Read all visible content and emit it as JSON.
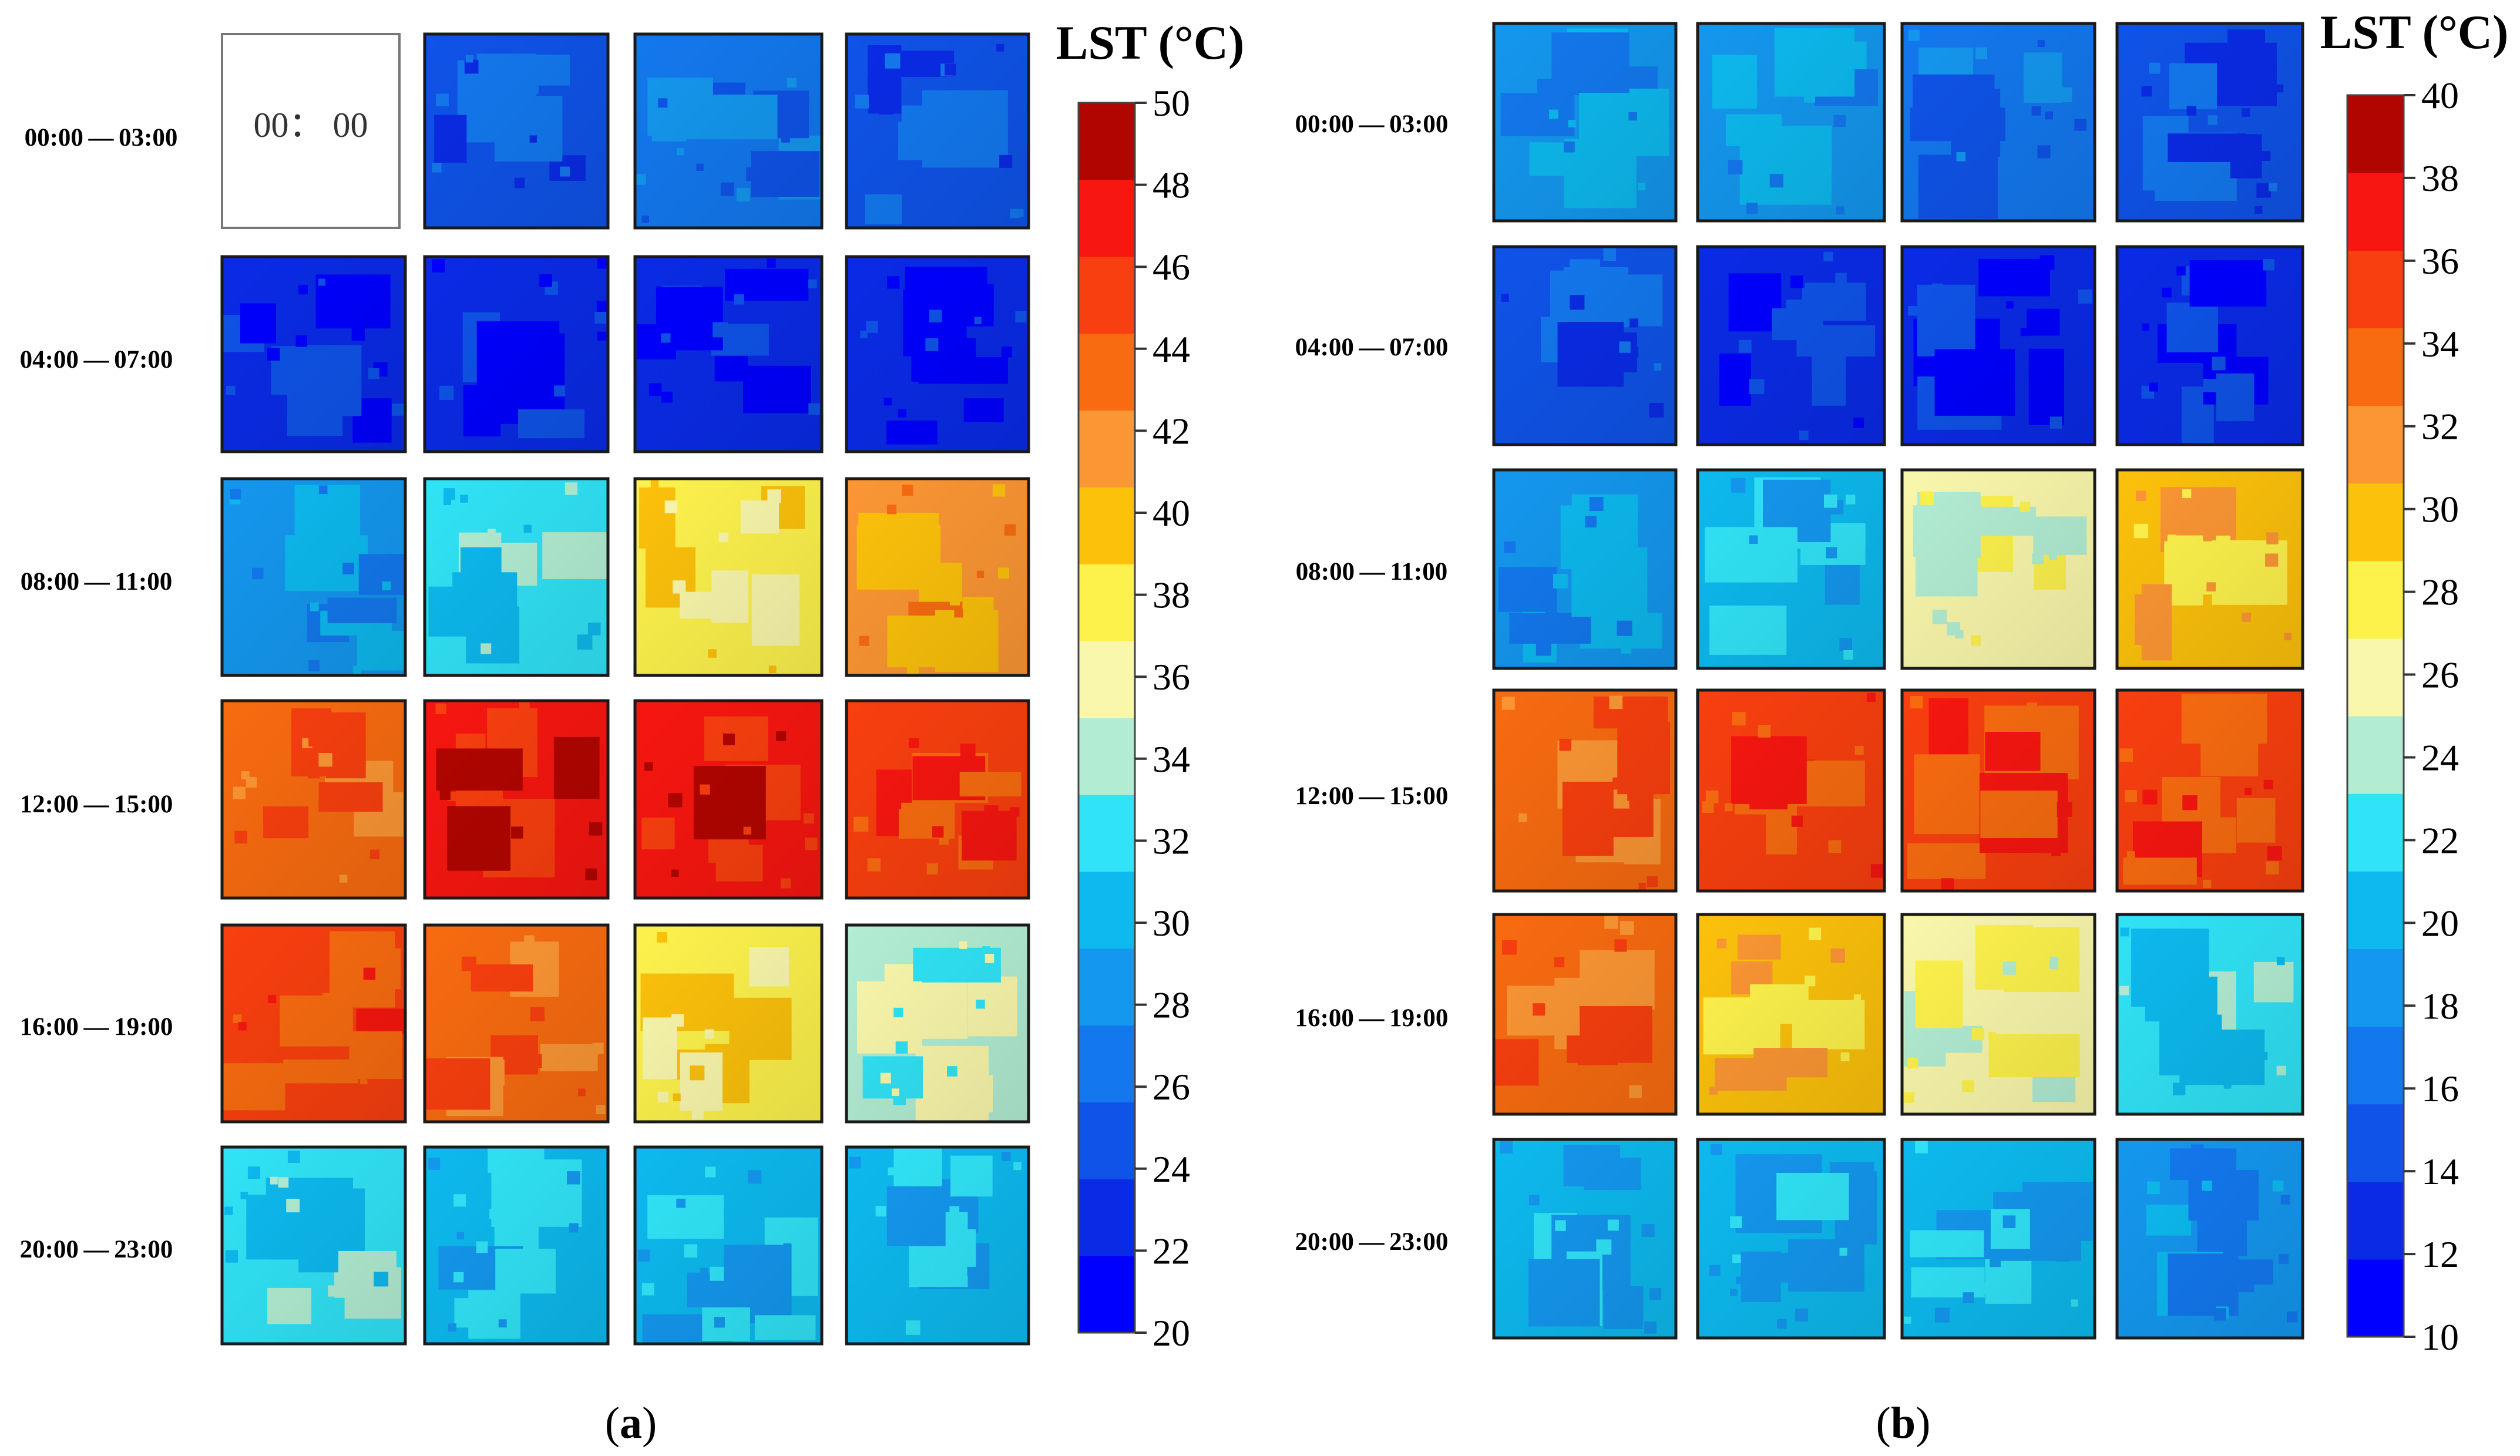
{
  "colors": {
    "scale": [
      "#0000ff",
      "#0a2be6",
      "#0f53e8",
      "#1378ee",
      "#1497ee",
      "#0db9ee",
      "#30e3f6",
      "#b2edd3",
      "#f9f7ab",
      "#fdf24c",
      "#fcc10b",
      "#fb9634",
      "#f86b10",
      "#f83f0f",
      "#f71610",
      "#b10500"
    ],
    "text": "#000000"
  },
  "chart_data": [
    {
      "type": "heatmap",
      "panel": "(a)",
      "panel_open": "(",
      "panel_letter": "a",
      "panel_close": ")",
      "legend": {
        "title": "LST (°C)",
        "min": 20,
        "max": 50,
        "ticks": [
          20,
          22,
          24,
          26,
          28,
          30,
          32,
          34,
          36,
          38,
          40,
          42,
          44,
          46,
          48,
          50
        ],
        "tick_labels": [
          "20",
          "22",
          "24",
          "26",
          "28",
          "30",
          "32",
          "34",
          "36",
          "38",
          "40",
          "42",
          "44",
          "46",
          "48",
          "50"
        ]
      },
      "row_labels": [
        "00:00 — 03:00",
        "04:00 — 07:00",
        "08:00 — 11:00",
        "12:00 — 15:00",
        "16:00 — 19:00",
        "20:00 — 23:00"
      ],
      "blank_tile_text": "00： 00",
      "tiles": [
        [
          null,
          25.5,
          26.5,
          25.5
        ],
        [
          23.5,
          23.0,
          22.8,
          22.8
        ],
        [
          29.0,
          31.5,
          37.0,
          42.0
        ],
        [
          44.0,
          47.0,
          47.0,
          46.0
        ],
        [
          45.0,
          42.5,
          38.5,
          34.5
        ],
        [
          32.5,
          30.0,
          29.5,
          29.5
        ]
      ]
    },
    {
      "type": "heatmap",
      "panel": "(b)",
      "panel_open": "(",
      "panel_letter": "b",
      "panel_close": ")",
      "legend": {
        "title": "LST (°C)",
        "min": 10,
        "max": 40,
        "ticks": [
          10,
          12,
          14,
          16,
          18,
          20,
          22,
          24,
          26,
          28,
          30,
          32,
          34,
          36,
          38,
          40
        ],
        "tick_labels": [
          "10",
          "12",
          "14",
          "16",
          "18",
          "20",
          "22",
          "24",
          "26",
          "28",
          "30",
          "32",
          "34",
          "36",
          "38",
          "40"
        ]
      },
      "row_labels": [
        "00:00 — 03:00",
        "04:00 — 07:00",
        "08:00 — 11:00",
        "12:00 — 15:00",
        "16:00 — 19:00",
        "20:00 — 23:00"
      ],
      "tiles": [
        [
          19.0,
          18.0,
          16.5,
          15.5
        ],
        [
          14.0,
          13.0,
          12.5,
          13.0
        ],
        [
          19.0,
          20.5,
          25.5,
          30.5
        ],
        [
          33.5,
          35.5,
          36.0,
          34.5
        ],
        [
          33.5,
          29.0,
          26.5,
          23.0
        ],
        [
          21.0,
          20.5,
          19.5,
          18.5
        ]
      ]
    }
  ]
}
